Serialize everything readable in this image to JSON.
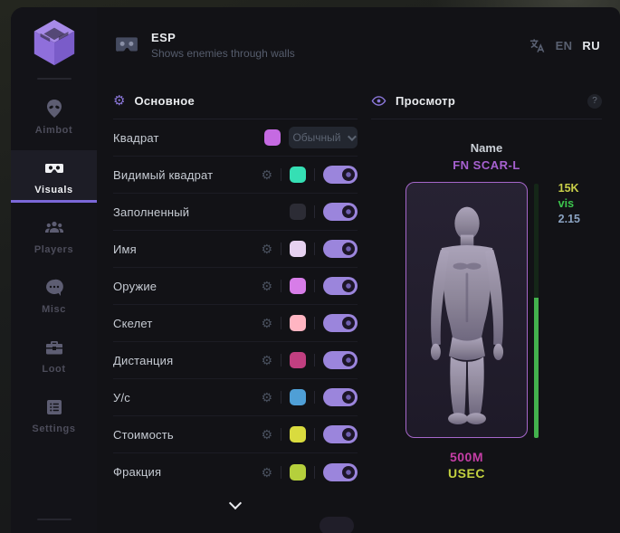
{
  "header": {
    "title": "ESP",
    "subtitle": "Shows enemies through walls",
    "languages": {
      "en": "EN",
      "ru": "RU",
      "active": "RU"
    }
  },
  "sidebar": {
    "items": [
      {
        "label": "Aimbot",
        "icon": "alien-icon",
        "active": false
      },
      {
        "label": "Visuals",
        "icon": "vr-goggles-icon",
        "active": true
      },
      {
        "label": "Players",
        "icon": "people-icon",
        "active": false
      },
      {
        "label": "Misc",
        "icon": "chat-dots-icon",
        "active": false
      },
      {
        "label": "Loot",
        "icon": "toolbox-icon",
        "active": false
      },
      {
        "label": "Settings",
        "icon": "list-icon",
        "active": false
      }
    ]
  },
  "main_panel": {
    "title": "Основное",
    "gear_glyph": "⚙",
    "rows": [
      {
        "label": "Квадрат",
        "swatch": "#c56ae2",
        "control": "dropdown",
        "dropdown_value": "Обычный"
      },
      {
        "label": "Видимый квадрат",
        "gear": true,
        "swatch": "#35dfb4",
        "toggle": "on"
      },
      {
        "label": "Заполненный",
        "gear": false,
        "swatch": "#2c2c35",
        "toggle": "on"
      },
      {
        "label": "Имя",
        "gear": true,
        "swatch": "#e6d1f0",
        "toggle": "on"
      },
      {
        "label": "Оружие",
        "gear": true,
        "swatch": "#d77de8",
        "toggle": "on"
      },
      {
        "label": "Скелет",
        "gear": true,
        "swatch": "#ffb5c2",
        "toggle": "on"
      },
      {
        "label": "Дистанция",
        "gear": true,
        "swatch": "#c13f80",
        "toggle": "on"
      },
      {
        "label": "У/с",
        "gear": true,
        "swatch": "#4f9fd6",
        "toggle": "on"
      },
      {
        "label": "Стоимость",
        "gear": true,
        "swatch": "#d9db3e",
        "toggle": "on"
      },
      {
        "label": "Фракция",
        "gear": true,
        "swatch": "#b5cf3c",
        "toggle": "on"
      }
    ]
  },
  "preview_panel": {
    "title": "Просмотр",
    "help_badge": "?",
    "name_label": "Name",
    "weapon_name": "FN SCAR-L",
    "price": "15K",
    "visibility": "vis",
    "multiplier": "2.15",
    "money": "500M",
    "faction": "USEC",
    "health_percent": 55,
    "colors": {
      "weapon_name": "#a761d1",
      "price": "#c9cf49",
      "visibility": "#3dc74e",
      "multiplier": "#8ba3c2",
      "money": "#c53ea6",
      "faction": "#c3d13f",
      "health_fill": "#43b24d",
      "box_border": "#a667ca"
    }
  }
}
